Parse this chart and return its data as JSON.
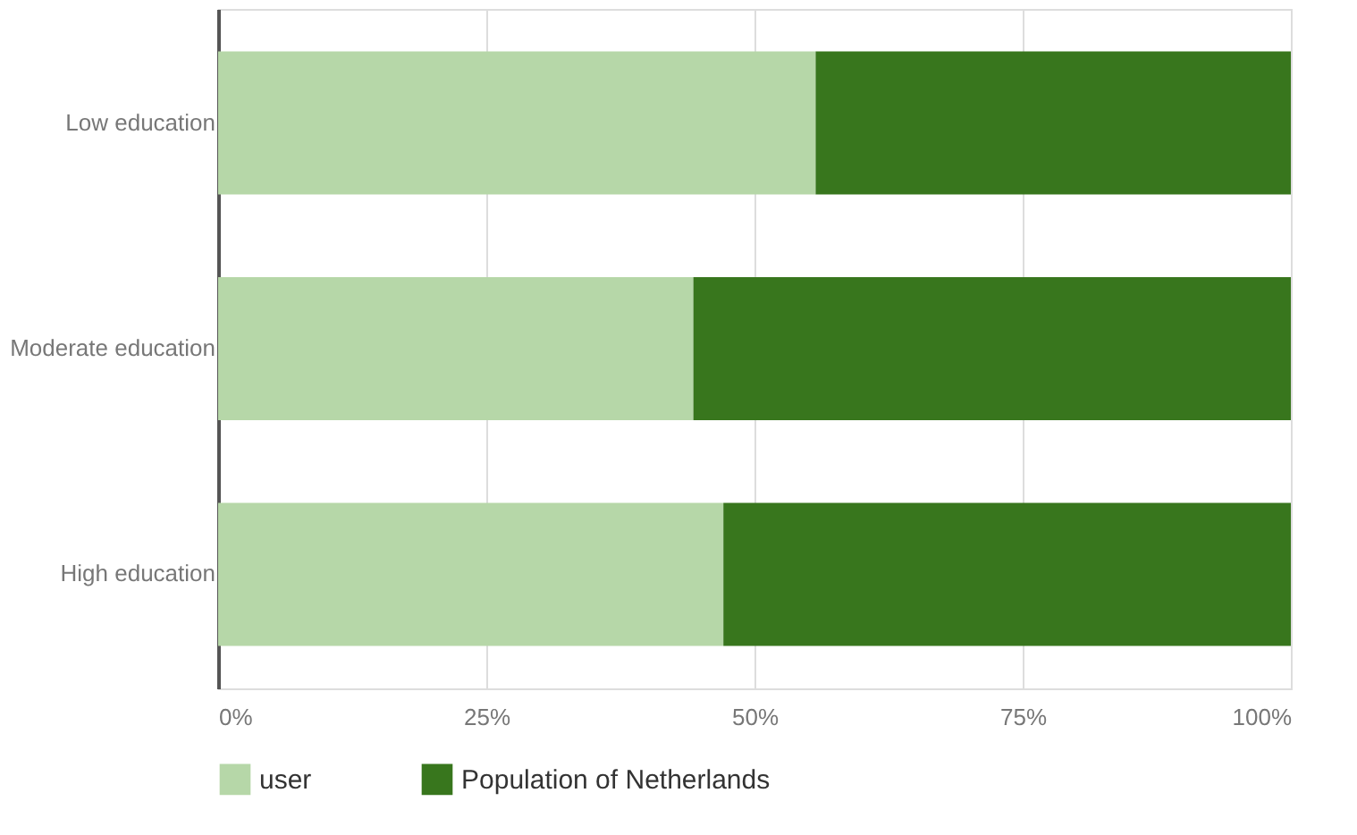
{
  "chart_data": {
    "type": "bar",
    "orientation": "horizontal",
    "stacked": true,
    "categories": [
      "Low education",
      "Moderate education",
      "High education"
    ],
    "series": [
      {
        "name": "user",
        "color": "#b6d7a8",
        "values": [
          55.7,
          44.3,
          47.1
        ]
      },
      {
        "name": "Population of Netherlands",
        "color": "#38761d",
        "values": [
          44.3,
          55.7,
          52.9
        ]
      }
    ],
    "xlim": [
      0,
      100
    ],
    "xticks": [
      {
        "value": 0,
        "label": "0%"
      },
      {
        "value": 25,
        "label": "25%"
      },
      {
        "value": 50,
        "label": "50%"
      },
      {
        "value": 75,
        "label": "75%"
      },
      {
        "value": 100,
        "label": "100%"
      }
    ],
    "grid": "x",
    "legend": "bottom"
  }
}
